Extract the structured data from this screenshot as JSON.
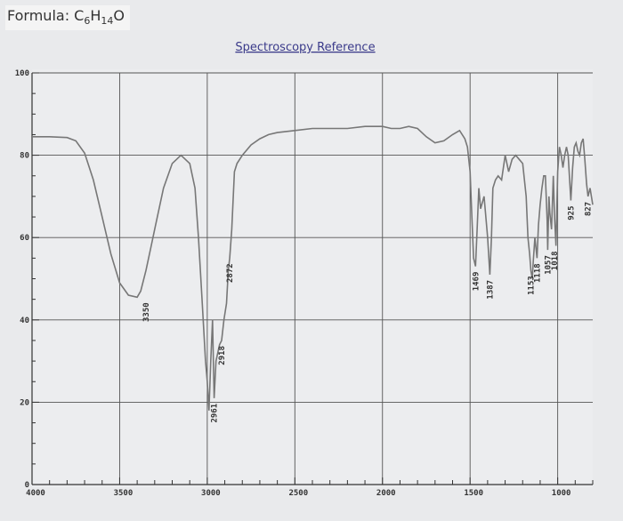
{
  "formula": {
    "prefix": "Formula: ",
    "parts": [
      {
        "t": "C",
        "sub": false
      },
      {
        "t": "6",
        "sub": true
      },
      {
        "t": "H",
        "sub": false
      },
      {
        "t": "14",
        "sub": true
      },
      {
        "t": "O",
        "sub": false
      }
    ]
  },
  "chart_data": {
    "type": "line",
    "title": "Spectroscopy Reference",
    "xlabel": "",
    "ylabel": "",
    "xlim": [
      4000,
      800
    ],
    "ylim": [
      0,
      100
    ],
    "x_reversed": true,
    "grid": true,
    "x_ticks": [
      4000,
      3500,
      3000,
      2500,
      2000,
      1500,
      1000
    ],
    "y_ticks": [
      0,
      20,
      40,
      60,
      80,
      100
    ],
    "x_tick_labels": [
      "4000",
      "3500",
      "3000",
      "2500",
      "2000",
      "1500",
      "1000"
    ],
    "y_tick_labels": [
      "0",
      "20",
      "40",
      "60",
      "80",
      "100"
    ],
    "series": [
      {
        "x": [
          4000,
          3900,
          3800,
          3750,
          3700,
          3650,
          3600,
          3550,
          3500,
          3450,
          3400,
          3380,
          3350,
          3320,
          3300,
          3250,
          3200,
          3150,
          3100,
          3070,
          3050,
          3030,
          3010,
          3000,
          2990,
          2980,
          2970,
          2961,
          2950,
          2940,
          2930,
          2918,
          2905,
          2890,
          2880,
          2872,
          2860,
          2845,
          2830,
          2800,
          2750,
          2700,
          2650,
          2600,
          2500,
          2400,
          2300,
          2200,
          2100,
          2000,
          1950,
          1900,
          1850,
          1800,
          1750,
          1700,
          1650,
          1600,
          1560,
          1530,
          1515,
          1500,
          1490,
          1480,
          1469,
          1460,
          1450,
          1440,
          1420,
          1400,
          1387,
          1378,
          1370,
          1355,
          1340,
          1320,
          1300,
          1280,
          1260,
          1240,
          1220,
          1200,
          1180,
          1170,
          1160,
          1153,
          1145,
          1140,
          1130,
          1118,
          1110,
          1100,
          1090,
          1080,
          1070,
          1060,
          1057,
          1050,
          1045,
          1035,
          1025,
          1018,
          1010,
          1000,
          990,
          980,
          970,
          960,
          950,
          940,
          925,
          915,
          905,
          895,
          885,
          875,
          865,
          855,
          845,
          835,
          827,
          815,
          800
        ],
        "y": [
          84.5,
          84.5,
          84.3,
          83.5,
          80.5,
          74,
          65,
          56,
          49,
          46,
          45.5,
          47,
          52,
          58,
          62,
          72,
          78,
          80,
          78,
          72,
          60,
          45,
          30,
          25,
          18,
          30,
          40,
          21,
          30,
          32,
          34,
          35,
          40,
          44,
          52,
          55,
          62,
          76,
          78,
          80,
          82.5,
          84,
          85,
          85.5,
          86,
          86.5,
          86.5,
          86.5,
          87,
          87,
          86.5,
          86.5,
          87,
          86.5,
          84.5,
          83,
          83.5,
          85,
          86,
          84,
          82,
          76,
          65,
          55,
          53,
          62,
          72,
          67,
          70,
          60,
          51,
          60,
          72,
          74,
          75,
          74,
          80,
          76,
          79,
          80,
          79,
          78,
          70,
          60,
          56,
          52,
          50,
          54,
          60,
          55,
          63,
          68,
          72,
          75,
          75,
          64,
          57,
          70,
          66,
          62,
          75,
          65,
          58,
          76,
          82,
          80,
          77,
          80,
          82,
          80,
          69,
          77,
          82,
          83,
          81,
          80,
          83,
          84,
          79,
          73,
          70,
          72,
          68
        ]
      }
    ],
    "peak_labels": [
      {
        "x": 3350,
        "y": 45.5,
        "text": "3350"
      },
      {
        "x": 2961,
        "y": 21,
        "text": "2961"
      },
      {
        "x": 2918,
        "y": 35,
        "text": "2918"
      },
      {
        "x": 2872,
        "y": 55,
        "text": "2872"
      },
      {
        "x": 1469,
        "y": 53,
        "text": "1469"
      },
      {
        "x": 1387,
        "y": 51,
        "text": "1387"
      },
      {
        "x": 1153,
        "y": 52,
        "text": "1153"
      },
      {
        "x": 1118,
        "y": 55,
        "text": "1118"
      },
      {
        "x": 1057,
        "y": 57,
        "text": "1057"
      },
      {
        "x": 1018,
        "y": 58,
        "text": "1018"
      },
      {
        "x": 925,
        "y": 69,
        "text": "925"
      },
      {
        "x": 827,
        "y": 70,
        "text": "827"
      }
    ]
  }
}
